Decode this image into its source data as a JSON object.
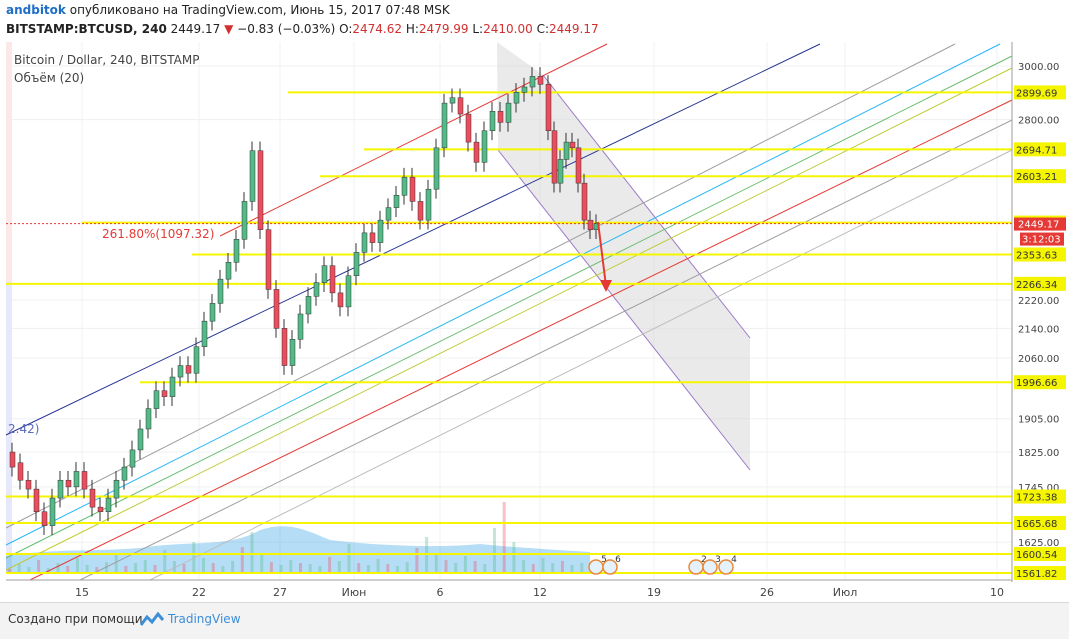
{
  "header": {
    "author": "andbitok",
    "published_text": " опубликовано на TradingView.com, Июнь 15, 2017 07:48 MSK",
    "symbol": "BITSTAMP:BTCUSD, 240",
    "last": "2449.17",
    "change": "−0.83 (−0.03%)",
    "o_label": "O:",
    "o": "2474.62",
    "h_label": "H:",
    "h": "2479.99",
    "l_label": "L:",
    "l": "2410.00",
    "c_label": "C:",
    "c": "2449.17"
  },
  "legend": {
    "title": "Bitcoin / Dollar, 240, BITSTAMP",
    "volume": "Объём (20)"
  },
  "annotations": {
    "fib_label": "261.80%(1097.32)",
    "left_label": "2.42)"
  },
  "footer": {
    "made_with": "Создано при помощи",
    "brand": "TradingView"
  },
  "colors": {
    "up": "#53b987",
    "down": "#eb4d5c",
    "hline": "#f5f500",
    "channel_red": "#e53935",
    "channel_blue": "#283593",
    "price_box": "#f5f500",
    "last_box": "#e53935"
  },
  "chart_data": {
    "type": "candlestick",
    "y_scale": "log",
    "y_range": [
      1530,
      3090
    ],
    "y_ticks": [
      "3000.00",
      "2800.00",
      "2220.00",
      "2140.00",
      "2060.00",
      "1905.00",
      "1825.00",
      "1745.00",
      "1625.00"
    ],
    "x_ticks": [
      "15",
      "22",
      "27",
      "Июн",
      "6",
      "12",
      "19",
      "26",
      "Июл",
      "10"
    ],
    "horizontal_levels": [
      "2899.69",
      "2694.71",
      "2603.21",
      "2452.30",
      "2353.63",
      "2266.34",
      "1996.66",
      "1723.38",
      "1665.68",
      "1600.54",
      "1561.82"
    ],
    "last_price": "2449.17",
    "countdown": "3:12:03",
    "event_markers": [
      "5",
      "6",
      "2",
      "3",
      "4"
    ]
  }
}
